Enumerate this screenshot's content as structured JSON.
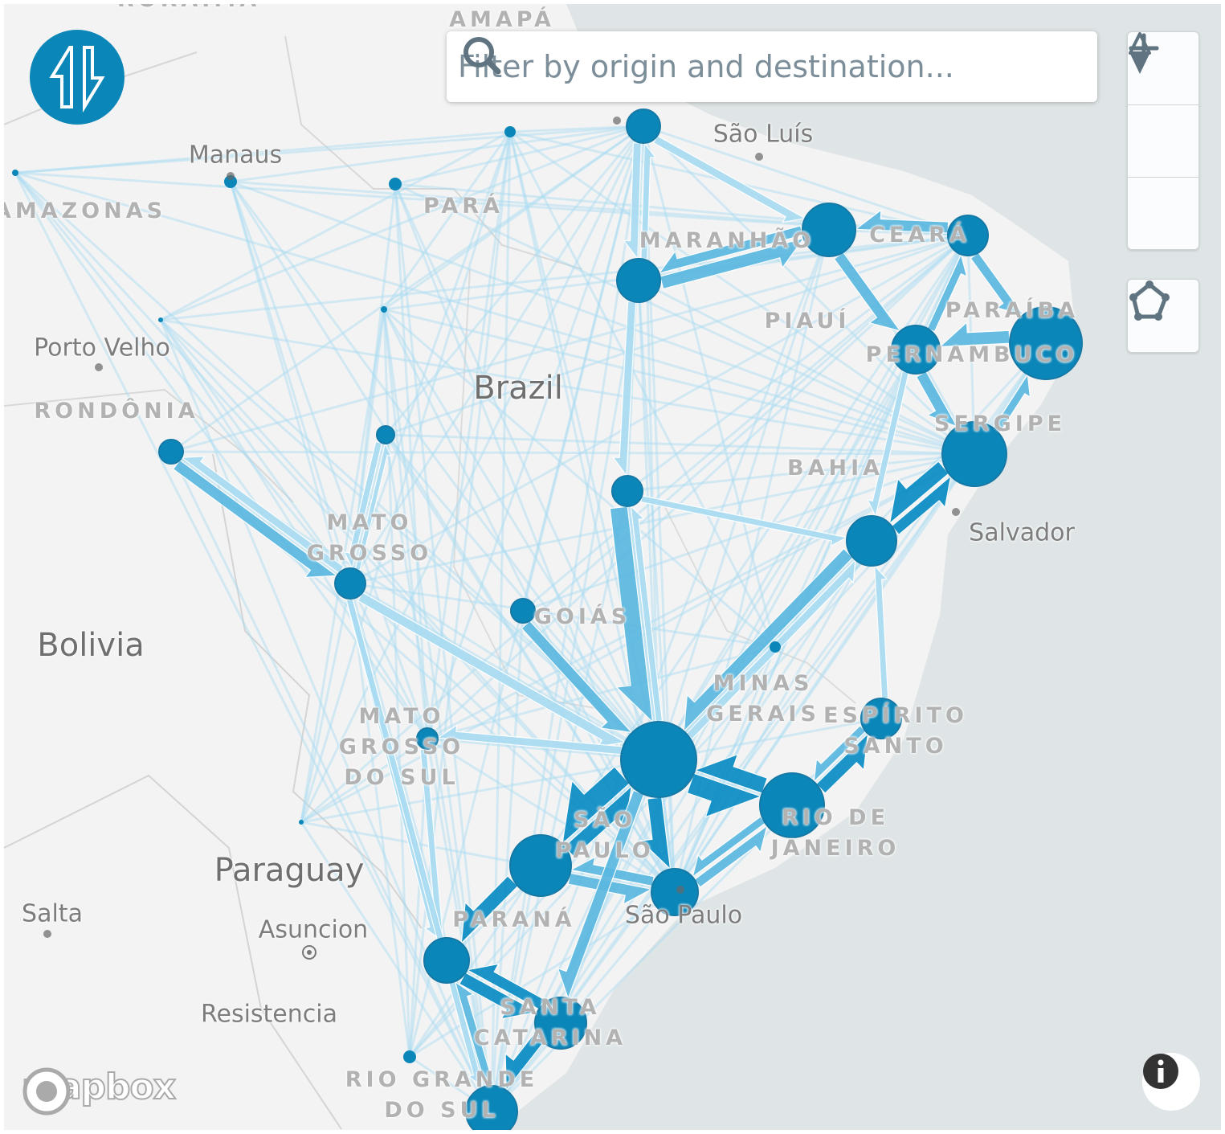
{
  "search": {
    "placeholder": "Filter by origin and destination..."
  },
  "controls": {
    "zoom_in": "zoom-in",
    "zoom_out": "zoom-out",
    "compass": "reset-bearing",
    "polygon": "draw-polygon"
  },
  "colors": {
    "accent": "#0b86b8",
    "flow_light": "#a9dcf2",
    "flow_mid": "#5bb8e0",
    "flow_dark": "#0a8cc4",
    "ocean": "#dfe5e6",
    "land": "#f3f3f3"
  },
  "labels": {
    "states": [
      "RORAIMA",
      "AMAPÁ",
      "AMAZONAS",
      "PARÁ",
      "MARANHÃO",
      "CEARÁ",
      "PIAUÍ",
      "PARAÍBA",
      "PERNAMBUCO",
      "RONDÔNIA",
      "SERGIPE",
      "BAHIA",
      "MATO\nGROSSO",
      "GOIÁS",
      "MINAS\nGERAIS",
      "ESPÍRITO\nSANTO",
      "MATO\nGROSSO\nDO SUL",
      "SÃO\nPAULO",
      "RIO DE\nJANEIRO",
      "PARANÁ",
      "SANTA\nCATARINA",
      "RIO GRANDE\nDO SUL"
    ],
    "cities": [
      "Manaus",
      "São Luís",
      "Porto Velho",
      "Salvador",
      "São Paulo",
      "Salta",
      "Asuncion",
      "Resistencia"
    ],
    "countries": [
      "Brazil",
      "Bolivia",
      "Paraguay"
    ]
  },
  "attribution": {
    "logo": "mapbox"
  }
}
